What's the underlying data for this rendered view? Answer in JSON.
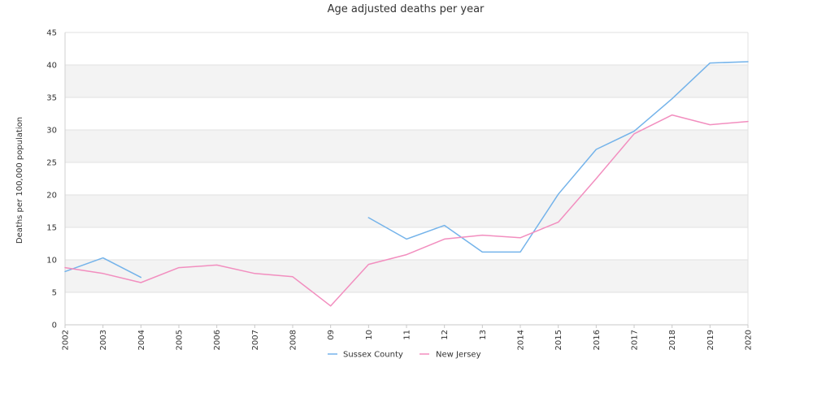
{
  "chart_data": {
    "type": "line",
    "title": "Age adjusted deaths per year",
    "xlabel": "",
    "ylabel": "Deaths per 100,000 population",
    "ylim": [
      0,
      45
    ],
    "yticks": [
      "0",
      "5",
      "10",
      "15",
      "20",
      "25",
      "30",
      "35",
      "40",
      "45"
    ],
    "categories": [
      "2002",
      "2003",
      "2004",
      "2005",
      "2006",
      "2007",
      "2008",
      "09",
      "10",
      "11",
      "12",
      "13",
      "2014",
      "2015",
      "2016",
      "2017",
      "2018",
      "2019",
      "2020"
    ],
    "grid": true,
    "legend_position": "bottom-center",
    "series": [
      {
        "name": "Sussex County",
        "color": "#74b3ea",
        "values": [
          8.2,
          10.3,
          7.3,
          null,
          null,
          null,
          null,
          null,
          16.5,
          13.2,
          15.3,
          11.2,
          11.2,
          20.1,
          27.0,
          29.8,
          34.8,
          40.3,
          40.5
        ]
      },
      {
        "name": "New Jersey",
        "color": "#f28ebf",
        "values": [
          8.8,
          7.9,
          6.5,
          8.8,
          9.2,
          7.9,
          7.4,
          2.9,
          9.3,
          10.8,
          13.2,
          13.8,
          13.4,
          15.8,
          22.5,
          29.4,
          32.3,
          30.8,
          31.3
        ]
      }
    ]
  }
}
